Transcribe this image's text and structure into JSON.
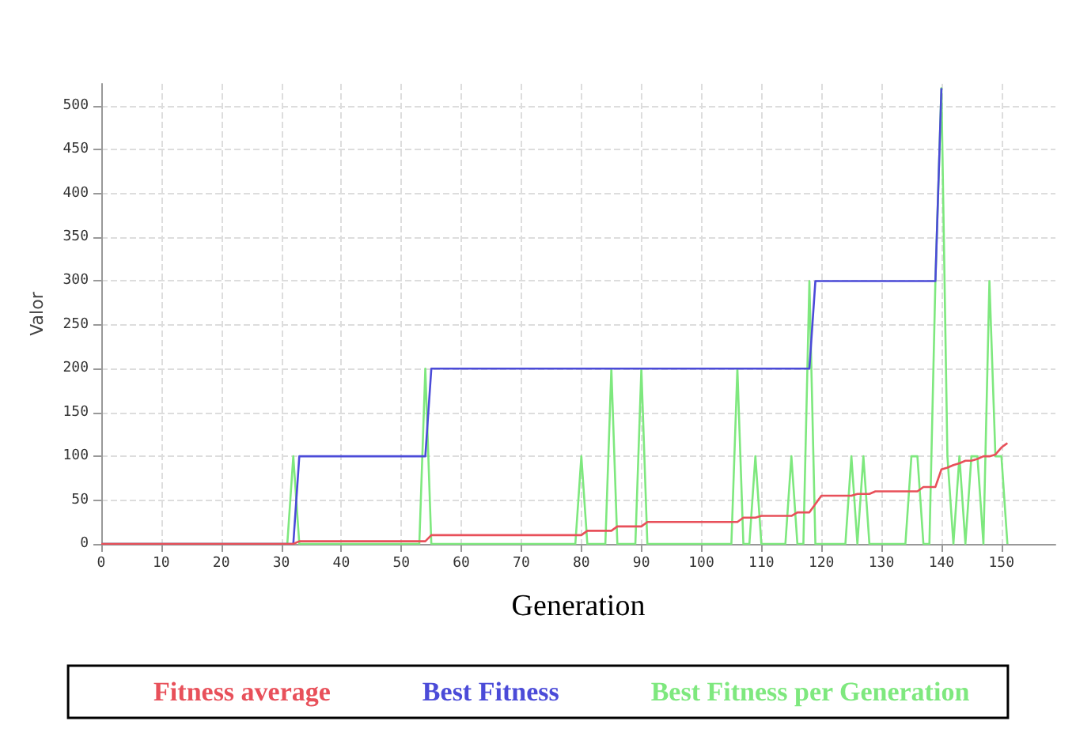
{
  "chart_data": {
    "type": "line",
    "xlabel": "Generation",
    "ylabel": "Valor",
    "xlim": [
      0,
      159
    ],
    "ylim": [
      0,
      525
    ],
    "xticks": [
      0,
      10,
      20,
      30,
      40,
      50,
      60,
      70,
      80,
      90,
      100,
      110,
      120,
      130,
      140,
      150
    ],
    "yticks": [
      0,
      50,
      100,
      150,
      200,
      250,
      300,
      350,
      400,
      450,
      500
    ],
    "grid": true,
    "legend": "bottom",
    "marker": "none",
    "line_style": "solid",
    "series": [
      {
        "name": "Fitness average",
        "color": "#e8505a",
        "x": [
          0,
          32,
          33,
          54,
          55,
          80,
          81,
          85,
          86,
          90,
          91,
          106,
          107,
          109,
          110,
          115,
          116,
          118,
          120,
          125,
          126,
          128,
          129,
          136,
          137,
          139,
          140,
          141,
          142,
          143,
          144,
          145,
          146,
          147,
          148,
          149,
          150,
          151
        ],
        "values": [
          0,
          0,
          3,
          3,
          10,
          10,
          15,
          15,
          20,
          20,
          25,
          25,
          30,
          30,
          32,
          32,
          36,
          36,
          55,
          55,
          57,
          57,
          60,
          60,
          65,
          65,
          85,
          87,
          90,
          92,
          95,
          95,
          97,
          100,
          100,
          102,
          110,
          115
        ]
      },
      {
        "name": "Best Fitness",
        "color": "#4b4bd8",
        "x": [
          0,
          32,
          33,
          54,
          55,
          118,
          119,
          139,
          140
        ],
        "values": [
          0,
          0,
          100,
          100,
          200,
          200,
          300,
          300,
          520
        ]
      },
      {
        "name": "Best Fitness per Generation",
        "color": "#7ee87e",
        "x": [
          0,
          31,
          32,
          33,
          53,
          54,
          55,
          79,
          80,
          81,
          84,
          85,
          86,
          89,
          90,
          91,
          105,
          106,
          107,
          108,
          109,
          110,
          114,
          115,
          116,
          117,
          118,
          119,
          120,
          124,
          125,
          126,
          127,
          128,
          134,
          135,
          136,
          137,
          138,
          139,
          140,
          141,
          142,
          143,
          144,
          145,
          146,
          147,
          148,
          149,
          150,
          151
        ],
        "values": [
          0,
          0,
          100,
          0,
          0,
          200,
          0,
          0,
          100,
          0,
          0,
          200,
          0,
          0,
          200,
          0,
          0,
          200,
          0,
          0,
          100,
          0,
          0,
          100,
          0,
          0,
          300,
          0,
          0,
          0,
          100,
          0,
          100,
          0,
          0,
          100,
          100,
          0,
          0,
          300,
          520,
          100,
          0,
          100,
          0,
          100,
          100,
          0,
          300,
          100,
          100,
          0
        ]
      }
    ]
  }
}
